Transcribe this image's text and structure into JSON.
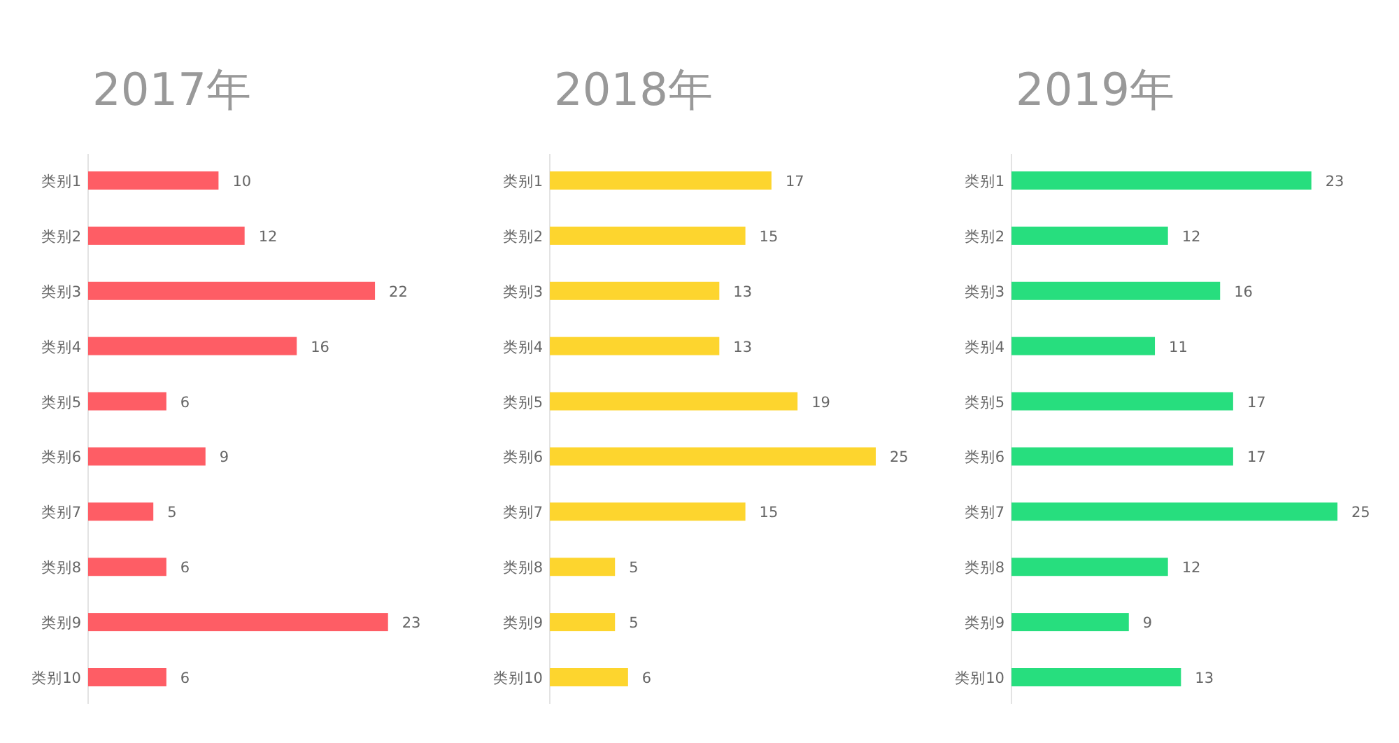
{
  "chart_data": [
    {
      "type": "bar",
      "title": "2017年",
      "orientation": "horizontal",
      "relative": false,
      "data_labels": true,
      "tick_labels": "y",
      "categories": [
        "类别1",
        "类别2",
        "类别3",
        "类别4",
        "类别5",
        "类别6",
        "类别7",
        "类别8",
        "类别9",
        "类别10"
      ],
      "values": [
        10,
        12,
        22,
        16,
        6,
        9,
        5,
        6,
        23,
        6
      ],
      "color": "#fe5d65"
    },
    {
      "type": "bar",
      "title": "2018年",
      "orientation": "horizontal",
      "relative": false,
      "data_labels": true,
      "tick_labels": "y",
      "categories": [
        "类别1",
        "类别2",
        "类别3",
        "类别4",
        "类别5",
        "类别6",
        "类别7",
        "类别8",
        "类别9",
        "类别10"
      ],
      "values": [
        17,
        15,
        13,
        13,
        19,
        25,
        15,
        5,
        5,
        6
      ],
      "color": "#fdd52e"
    },
    {
      "type": "bar",
      "title": "2019年",
      "orientation": "horizontal",
      "relative": false,
      "data_labels": true,
      "tick_labels": "y",
      "categories": [
        "类别1",
        "类别2",
        "类别3",
        "类别4",
        "类别5",
        "类别6",
        "类别7",
        "类别8",
        "类别9",
        "类别10"
      ],
      "values": [
        23,
        12,
        16,
        11,
        17,
        17,
        25,
        12,
        9,
        13
      ],
      "color": "#27de7e"
    }
  ]
}
